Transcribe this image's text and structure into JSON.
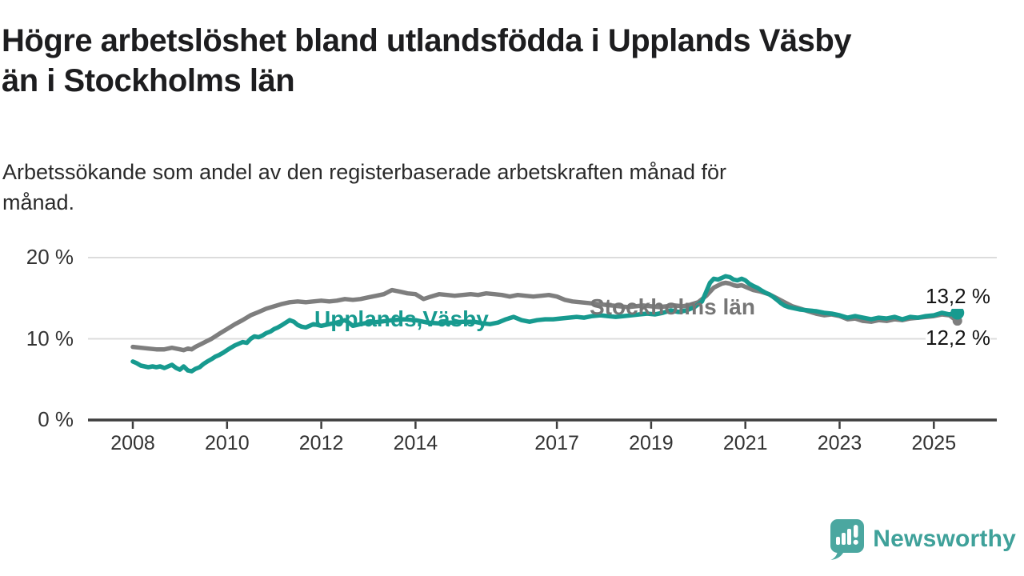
{
  "header": {
    "title_lines": [
      "Högre arbetslöshet bland utlandsfödda i Upplands Väsby",
      "än i Stockholms län"
    ],
    "subtitle_lines": [
      "Arbetssökande som andel av den registerbaserade arbetskraften månad för",
      "månad."
    ]
  },
  "chart_data": {
    "type": "line",
    "title": "Högre arbetslöshet bland utlandsfödda i Upplands Väsby än i Stockholms län",
    "subtitle": "Arbetssökande som andel av den registerbaserade arbetskraften månad för månad.",
    "unit": "%",
    "grid": "horizontal gridlines at 10 and 20, dark baseline at 0",
    "legend_position": "inline labels on lines",
    "x_range": [
      2007.05,
      2026.35
    ],
    "y_range": [
      0,
      21
    ],
    "x_ticks": [
      2008,
      2010,
      2012,
      2014,
      2017,
      2019,
      2021,
      2023,
      2025
    ],
    "y_ticks": [
      {
        "value": 0,
        "label": "0 %"
      },
      {
        "value": 10,
        "label": "10 %"
      },
      {
        "value": 20,
        "label": "20 %"
      }
    ],
    "colors": {
      "upplands_vasby": "#179a8f",
      "stockholms_lan": "#7e7e7e",
      "gridline": "#dcdcdc",
      "axis": "#3e3e3e"
    },
    "series": [
      {
        "name": "Stockholms län",
        "inline_label": "Stockholms län",
        "color": "#7e7e7e",
        "end_label": "12,2 %",
        "end_value": 12.2,
        "points": [
          [
            2008.0,
            9.0
          ],
          [
            2008.17,
            8.9
          ],
          [
            2008.33,
            8.8
          ],
          [
            2008.5,
            8.7
          ],
          [
            2008.67,
            8.7
          ],
          [
            2008.83,
            8.9
          ],
          [
            2009.0,
            8.7
          ],
          [
            2009.08,
            8.6
          ],
          [
            2009.17,
            8.8
          ],
          [
            2009.25,
            8.7
          ],
          [
            2009.33,
            9.0
          ],
          [
            2009.5,
            9.5
          ],
          [
            2009.67,
            10.0
          ],
          [
            2009.83,
            10.6
          ],
          [
            2010.0,
            11.2
          ],
          [
            2010.17,
            11.8
          ],
          [
            2010.33,
            12.3
          ],
          [
            2010.5,
            12.9
          ],
          [
            2010.67,
            13.3
          ],
          [
            2010.83,
            13.7
          ],
          [
            2011.0,
            14.0
          ],
          [
            2011.17,
            14.3
          ],
          [
            2011.33,
            14.5
          ],
          [
            2011.5,
            14.6
          ],
          [
            2011.67,
            14.5
          ],
          [
            2011.83,
            14.6
          ],
          [
            2012.0,
            14.7
          ],
          [
            2012.17,
            14.6
          ],
          [
            2012.33,
            14.7
          ],
          [
            2012.5,
            14.9
          ],
          [
            2012.67,
            14.8
          ],
          [
            2012.83,
            14.9
          ],
          [
            2013.0,
            15.1
          ],
          [
            2013.17,
            15.3
          ],
          [
            2013.33,
            15.5
          ],
          [
            2013.5,
            16.0
          ],
          [
            2013.67,
            15.8
          ],
          [
            2013.83,
            15.6
          ],
          [
            2014.0,
            15.5
          ],
          [
            2014.17,
            14.9
          ],
          [
            2014.33,
            15.2
          ],
          [
            2014.5,
            15.5
          ],
          [
            2014.67,
            15.4
          ],
          [
            2014.83,
            15.3
          ],
          [
            2015.0,
            15.4
          ],
          [
            2015.17,
            15.5
          ],
          [
            2015.33,
            15.4
          ],
          [
            2015.5,
            15.6
          ],
          [
            2015.67,
            15.5
          ],
          [
            2015.83,
            15.4
          ],
          [
            2016.0,
            15.2
          ],
          [
            2016.17,
            15.4
          ],
          [
            2016.33,
            15.3
          ],
          [
            2016.5,
            15.2
          ],
          [
            2016.67,
            15.3
          ],
          [
            2016.83,
            15.4
          ],
          [
            2017.0,
            15.2
          ],
          [
            2017.17,
            14.8
          ],
          [
            2017.33,
            14.6
          ],
          [
            2017.5,
            14.5
          ],
          [
            2017.67,
            14.4
          ],
          [
            2017.83,
            14.3
          ],
          [
            2018.0,
            14.2
          ],
          [
            2018.17,
            14.1
          ],
          [
            2018.33,
            14.0
          ],
          [
            2018.5,
            13.9
          ],
          [
            2018.67,
            14.0
          ],
          [
            2018.83,
            14.1
          ],
          [
            2019.0,
            14.0
          ],
          [
            2019.17,
            13.9
          ],
          [
            2019.33,
            14.0
          ],
          [
            2019.5,
            14.1
          ],
          [
            2019.67,
            14.0
          ],
          [
            2019.83,
            14.2
          ],
          [
            2020.0,
            14.5
          ],
          [
            2020.17,
            15.3
          ],
          [
            2020.33,
            16.3
          ],
          [
            2020.5,
            16.8
          ],
          [
            2020.58,
            16.9
          ],
          [
            2020.67,
            16.8
          ],
          [
            2020.75,
            16.6
          ],
          [
            2020.83,
            16.5
          ],
          [
            2020.92,
            16.6
          ],
          [
            2021.0,
            16.4
          ],
          [
            2021.17,
            16.0
          ],
          [
            2021.33,
            15.8
          ],
          [
            2021.5,
            15.5
          ],
          [
            2021.67,
            15.0
          ],
          [
            2021.83,
            14.5
          ],
          [
            2022.0,
            14.0
          ],
          [
            2022.17,
            13.7
          ],
          [
            2022.33,
            13.4
          ],
          [
            2022.5,
            13.1
          ],
          [
            2022.67,
            12.9
          ],
          [
            2022.83,
            13.0
          ],
          [
            2023.0,
            12.8
          ],
          [
            2023.17,
            12.4
          ],
          [
            2023.33,
            12.5
          ],
          [
            2023.5,
            12.2
          ],
          [
            2023.67,
            12.1
          ],
          [
            2023.83,
            12.3
          ],
          [
            2024.0,
            12.2
          ],
          [
            2024.17,
            12.4
          ],
          [
            2024.33,
            12.3
          ],
          [
            2024.5,
            12.5
          ],
          [
            2024.67,
            12.6
          ],
          [
            2024.83,
            12.7
          ],
          [
            2025.0,
            12.8
          ],
          [
            2025.17,
            13.0
          ],
          [
            2025.33,
            12.9
          ],
          [
            2025.42,
            12.5
          ],
          [
            2025.5,
            12.2
          ]
        ]
      },
      {
        "name": "Upplands Väsby",
        "inline_label": "Upplands,Väsby",
        "color": "#179a8f",
        "end_label": "13,2 %",
        "end_value": 13.2,
        "points": [
          [
            2008.0,
            7.2
          ],
          [
            2008.08,
            7.0
          ],
          [
            2008.17,
            6.7
          ],
          [
            2008.25,
            6.6
          ],
          [
            2008.33,
            6.5
          ],
          [
            2008.42,
            6.6
          ],
          [
            2008.5,
            6.5
          ],
          [
            2008.58,
            6.6
          ],
          [
            2008.67,
            6.4
          ],
          [
            2008.75,
            6.6
          ],
          [
            2008.83,
            6.8
          ],
          [
            2008.92,
            6.4
          ],
          [
            2009.0,
            6.2
          ],
          [
            2009.08,
            6.6
          ],
          [
            2009.17,
            6.1
          ],
          [
            2009.25,
            6.0
          ],
          [
            2009.33,
            6.3
          ],
          [
            2009.42,
            6.5
          ],
          [
            2009.5,
            6.9
          ],
          [
            2009.58,
            7.2
          ],
          [
            2009.67,
            7.5
          ],
          [
            2009.75,
            7.8
          ],
          [
            2009.83,
            8.0
          ],
          [
            2009.92,
            8.3
          ],
          [
            2010.0,
            8.6
          ],
          [
            2010.08,
            8.9
          ],
          [
            2010.17,
            9.2
          ],
          [
            2010.25,
            9.4
          ],
          [
            2010.33,
            9.6
          ],
          [
            2010.42,
            9.5
          ],
          [
            2010.5,
            10.0
          ],
          [
            2010.58,
            10.3
          ],
          [
            2010.67,
            10.2
          ],
          [
            2010.75,
            10.4
          ],
          [
            2010.83,
            10.7
          ],
          [
            2010.92,
            10.9
          ],
          [
            2011.0,
            11.2
          ],
          [
            2011.08,
            11.4
          ],
          [
            2011.17,
            11.7
          ],
          [
            2011.25,
            12.0
          ],
          [
            2011.33,
            12.3
          ],
          [
            2011.42,
            12.1
          ],
          [
            2011.5,
            11.7
          ],
          [
            2011.58,
            11.5
          ],
          [
            2011.67,
            11.4
          ],
          [
            2011.75,
            11.6
          ],
          [
            2011.83,
            11.8
          ],
          [
            2011.92,
            11.7
          ],
          [
            2012.0,
            11.6
          ],
          [
            2012.17,
            11.8
          ],
          [
            2012.33,
            12.0
          ],
          [
            2012.5,
            12.3
          ],
          [
            2012.58,
            12.0
          ],
          [
            2012.67,
            11.6
          ],
          [
            2012.83,
            11.8
          ],
          [
            2013.0,
            12.0
          ],
          [
            2013.25,
            12.1
          ],
          [
            2013.5,
            12.3
          ],
          [
            2013.75,
            12.4
          ],
          [
            2014.0,
            12.3
          ],
          [
            2014.25,
            12.0
          ],
          [
            2014.5,
            11.9
          ],
          [
            2014.75,
            12.0
          ],
          [
            2015.0,
            12.1
          ],
          [
            2015.25,
            12.1
          ],
          [
            2015.42,
            11.9
          ],
          [
            2015.58,
            11.8
          ],
          [
            2015.75,
            12.0
          ],
          [
            2015.92,
            12.4
          ],
          [
            2016.08,
            12.7
          ],
          [
            2016.25,
            12.3
          ],
          [
            2016.42,
            12.1
          ],
          [
            2016.58,
            12.3
          ],
          [
            2016.75,
            12.4
          ],
          [
            2016.92,
            12.4
          ],
          [
            2017.08,
            12.5
          ],
          [
            2017.25,
            12.6
          ],
          [
            2017.42,
            12.7
          ],
          [
            2017.58,
            12.6
          ],
          [
            2017.75,
            12.8
          ],
          [
            2017.92,
            12.9
          ],
          [
            2018.08,
            12.8
          ],
          [
            2018.25,
            12.7
          ],
          [
            2018.42,
            12.8
          ],
          [
            2018.58,
            12.9
          ],
          [
            2018.75,
            13.0
          ],
          [
            2018.92,
            13.1
          ],
          [
            2019.08,
            13.0
          ],
          [
            2019.25,
            13.2
          ],
          [
            2019.42,
            13.5
          ],
          [
            2019.58,
            13.3
          ],
          [
            2019.75,
            13.5
          ],
          [
            2019.92,
            13.9
          ],
          [
            2020.08,
            14.6
          ],
          [
            2020.17,
            15.8
          ],
          [
            2020.25,
            16.9
          ],
          [
            2020.33,
            17.4
          ],
          [
            2020.42,
            17.3
          ],
          [
            2020.5,
            17.5
          ],
          [
            2020.58,
            17.7
          ],
          [
            2020.67,
            17.6
          ],
          [
            2020.75,
            17.3
          ],
          [
            2020.83,
            17.2
          ],
          [
            2020.92,
            17.4
          ],
          [
            2021.0,
            17.2
          ],
          [
            2021.08,
            16.8
          ],
          [
            2021.17,
            16.5
          ],
          [
            2021.25,
            16.3
          ],
          [
            2021.33,
            16.0
          ],
          [
            2021.42,
            15.7
          ],
          [
            2021.5,
            15.5
          ],
          [
            2021.58,
            15.2
          ],
          [
            2021.67,
            14.8
          ],
          [
            2021.75,
            14.4
          ],
          [
            2021.83,
            14.1
          ],
          [
            2021.92,
            13.9
          ],
          [
            2022.0,
            13.8
          ],
          [
            2022.17,
            13.6
          ],
          [
            2022.33,
            13.5
          ],
          [
            2022.5,
            13.4
          ],
          [
            2022.67,
            13.2
          ],
          [
            2022.83,
            13.1
          ],
          [
            2023.0,
            12.9
          ],
          [
            2023.17,
            12.6
          ],
          [
            2023.33,
            12.8
          ],
          [
            2023.5,
            12.6
          ],
          [
            2023.67,
            12.4
          ],
          [
            2023.83,
            12.6
          ],
          [
            2024.0,
            12.5
          ],
          [
            2024.17,
            12.7
          ],
          [
            2024.33,
            12.4
          ],
          [
            2024.5,
            12.7
          ],
          [
            2024.67,
            12.6
          ],
          [
            2024.83,
            12.8
          ],
          [
            2025.0,
            12.9
          ],
          [
            2025.17,
            13.2
          ],
          [
            2025.33,
            13.0
          ],
          [
            2025.5,
            13.2
          ]
        ]
      }
    ]
  },
  "footer": {
    "brand": "Newsworthy",
    "logo_icon": "speech-bubble-bar-chart-icon",
    "brand_color": "#3fa19a",
    "icon_color": "#4ba7a0"
  }
}
